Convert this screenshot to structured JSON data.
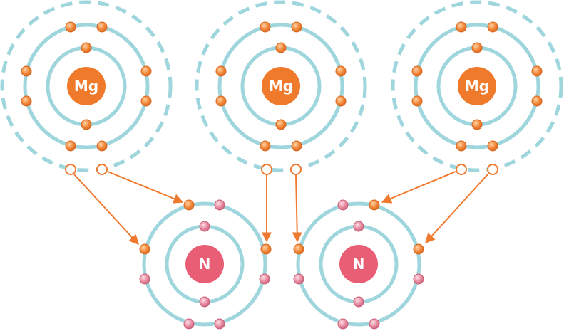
{
  "colors": {
    "shell": "#9fd6dd",
    "shell_dashed": "#9fd6dd",
    "mg_nucleus": "#f07a2c",
    "n_nucleus": "#e85e74",
    "mg_electron": "#f28a3c",
    "n_electron": "#e98ea3",
    "arrow": "#ef7a2f",
    "label_text": "#ffffff"
  },
  "magnesium_atoms": [
    {
      "symbol": "Mg"
    },
    {
      "symbol": "Mg"
    },
    {
      "symbol": "Mg"
    }
  ],
  "nitrogen_atoms": [
    {
      "symbol": "N"
    },
    {
      "symbol": "N"
    }
  ]
}
